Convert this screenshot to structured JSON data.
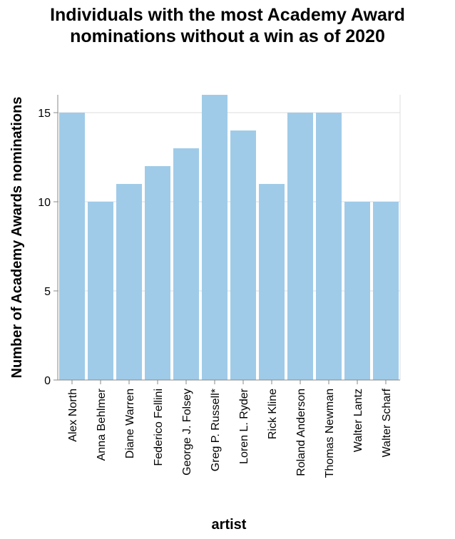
{
  "chart_data": {
    "type": "bar",
    "title_lines": [
      "Individuals with the most Academy Award",
      "nominations without a win as of 2020"
    ],
    "xlabel": "artist",
    "ylabel": "Number of Academy Awards nominations",
    "categories": [
      "Alex North",
      "Anna Behlmer",
      "Diane Warren",
      "Federico Fellini",
      "George J. Folsey",
      "Greg P. Russell*",
      "Loren L. Ryder",
      "Rick Kline",
      "Roland Anderson",
      "Thomas Newman",
      "Walter Lantz",
      "Walter Scharf"
    ],
    "values": [
      15,
      10,
      11,
      12,
      13,
      16,
      14,
      11,
      15,
      15,
      10,
      10
    ],
    "ylim": [
      0,
      16
    ],
    "yticks": [
      0,
      5,
      10,
      15
    ],
    "grid": true,
    "bar_color": "#a0cbe8"
  }
}
